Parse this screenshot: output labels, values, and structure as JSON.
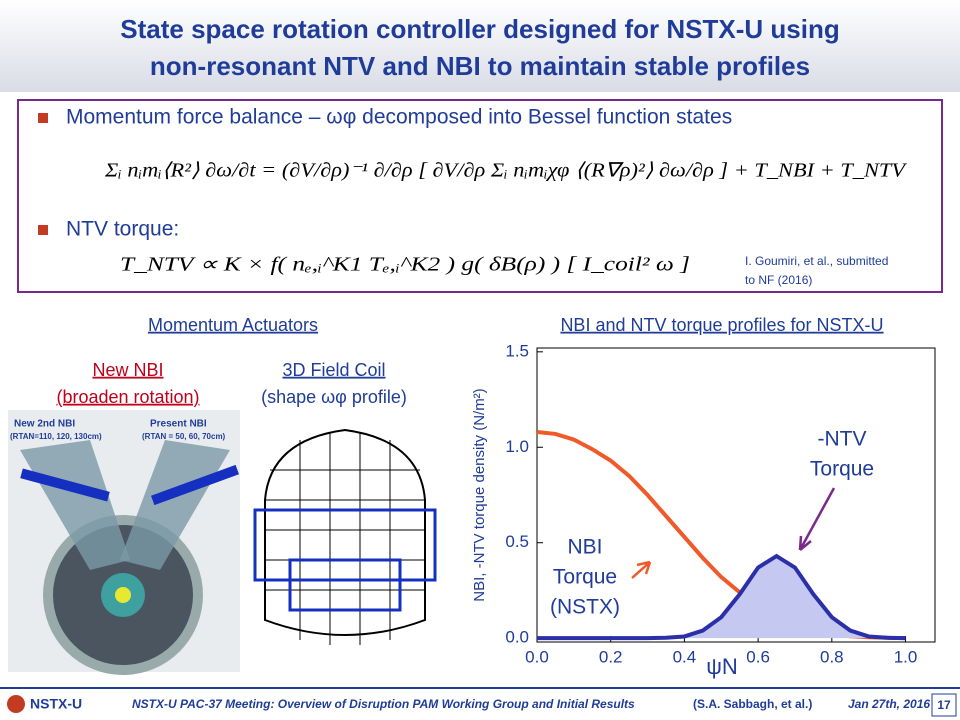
{
  "header": {
    "title_lines": [
      "State space rotation controller designed for NSTX-U using",
      "non-resonant NTV and NBI to maintain stable profiles"
    ]
  },
  "box": {
    "bullets": [
      "Momentum force balance – ωφ decomposed into Bessel function states",
      "NTV torque:"
    ],
    "equations": [
      "Σᵢ nᵢmᵢ⟨R²⟩ ∂ω/∂t = (∂V/∂ρ)⁻¹ ∂/∂ρ [ ∂V/∂ρ Σᵢ nᵢmᵢχφ ⟨(R∇ρ)²⟩ ∂ω/∂ρ ] + T_NBI + T_NTV",
      "T_NTV ∝ K × f( nₑ,ᵢ^K1 Tₑ,ᵢ^K2 ) g( δB(ρ) ) [ I_coil² ω ]"
    ],
    "citation_lines": [
      "I. Goumiri, et al., submitted",
      "to NF (2016)"
    ]
  },
  "left": {
    "heading": "Momentum Actuators",
    "nbi_lines": [
      "New NBI",
      "(broaden rotation)"
    ],
    "coil_lines": [
      "3D Field Coil",
      "(shape ωφ profile)"
    ],
    "image_labels": [
      "New 2nd NBI",
      "(RTAN=110, 120, 130cm)",
      "Present NBI",
      "(RTAN = 50, 60, 70cm)"
    ]
  },
  "chart_data": {
    "type": "line",
    "title": "NBI and NTV torque profiles for NSTX-U",
    "x_label": "ψN",
    "y_label": "NBI, -NTV torque density (N/m²)",
    "x": [
      0,
      0.05,
      0.1,
      0.15,
      0.2,
      0.25,
      0.3,
      0.35,
      0.4,
      0.45,
      0.5,
      0.55,
      0.6,
      0.65,
      0.7,
      0.75,
      0.8,
      0.85,
      0.9,
      0.95,
      1.0
    ],
    "series": [
      {
        "name": "NBI",
        "color": "#f05a28",
        "values": [
          1.08,
          1.07,
          1.04,
          0.99,
          0.93,
          0.85,
          0.75,
          0.64,
          0.53,
          0.42,
          0.32,
          0.24,
          0.16,
          0.1,
          0.06,
          0.035,
          0.02,
          0.01,
          0.005,
          0.002,
          0
        ]
      },
      {
        "name": "-NTV",
        "color": "#2b2fa8",
        "fill": "#c5c8f0",
        "values": [
          0,
          0,
          0,
          0,
          0,
          0,
          0,
          0.002,
          0.009,
          0.04,
          0.11,
          0.23,
          0.37,
          0.43,
          0.37,
          0.23,
          0.11,
          0.04,
          0.009,
          0.002,
          0
        ]
      }
    ],
    "annotations": [
      [
        "-NTV",
        "Torque"
      ],
      [
        "NBI",
        "Torque",
        "(NSTX)"
      ]
    ],
    "xlim": [
      0,
      1.08
    ],
    "ylim": [
      -0.02,
      1.52
    ],
    "xticks": [
      {
        "value": 0,
        "label": "0.0"
      },
      {
        "value": 0.2,
        "label": "0.2"
      },
      {
        "value": 0.4,
        "label": "0.4"
      },
      {
        "value": 0.6,
        "label": "0.6"
      },
      {
        "value": 0.8,
        "label": "0.8"
      },
      {
        "value": 1.0,
        "label": "1.0"
      }
    ],
    "yticks": [
      {
        "value": 0,
        "label": "0.0"
      },
      {
        "value": 0.5,
        "label": "0.5"
      },
      {
        "value": 1.0,
        "label": "1.0"
      },
      {
        "value": 1.5,
        "label": "1.5"
      }
    ]
  },
  "footer": {
    "logo": "NSTX-U",
    "meeting": "NSTX-U PAC-37 Meeting: Overview of Disruption PAM Working Group and Initial Results",
    "author": "(S.A. Sabbagh, et al.)",
    "date": "Jan 27th, 2016",
    "page": "17"
  }
}
